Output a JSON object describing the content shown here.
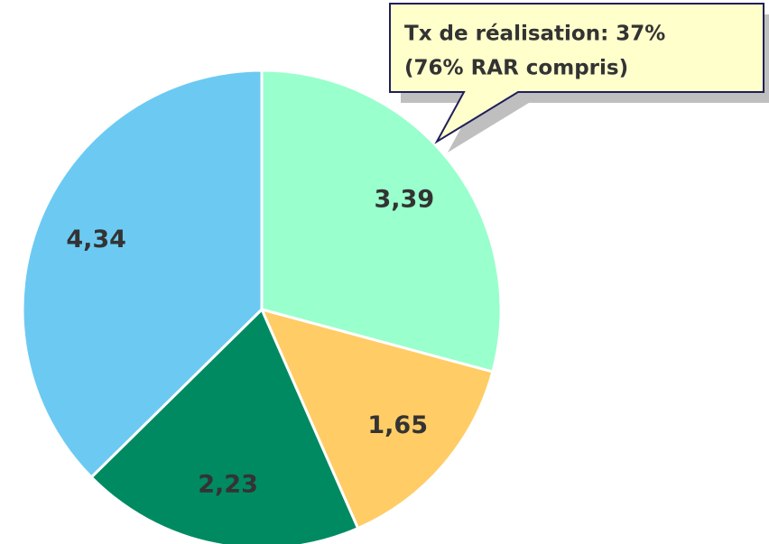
{
  "chart_data": {
    "type": "pie",
    "values": [
      3.39,
      1.65,
      2.23,
      4.34
    ],
    "value_labels": [
      "3,39",
      "1,65",
      "2,23",
      "4,34"
    ],
    "colors": [
      "#99ffcc",
      "#ffcc66",
      "#008a62",
      "#6ccaf2"
    ],
    "annotation": [
      "Tx de réalisation: 37%",
      "(76% RAR compris)"
    ]
  }
}
